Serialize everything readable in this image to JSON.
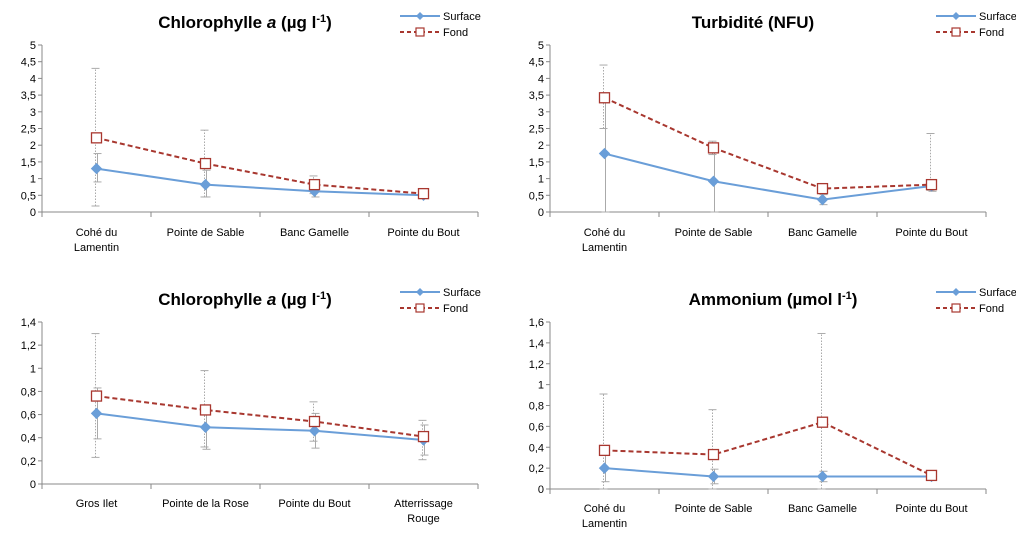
{
  "colors": {
    "surface": "#6a9ed8",
    "fond": "#a8372f",
    "axis": "#888888",
    "error": "#aaaaaa"
  },
  "chart_data": [
    {
      "type": "line",
      "title_main": "Chlorophylle ",
      "title_italic": "a",
      "title_rest": " (µg l",
      "title_sup": "-1",
      "title_end": ")",
      "categories": [
        [
          "Cohé du",
          "Lamentin"
        ],
        [
          "Pointe de Sable"
        ],
        [
          "Banc Gamelle"
        ],
        [
          "Pointe du Bout"
        ]
      ],
      "ylim": [
        0,
        5
      ],
      "yticks": [
        "0",
        "0,5",
        "1",
        "1,5",
        "2",
        "2,5",
        "3",
        "3,5",
        "4",
        "4,5",
        "5"
      ],
      "legend_placement": "top-right",
      "series": [
        {
          "name": "Surface",
          "values": [
            1.3,
            0.82,
            0.62,
            0.5
          ],
          "err_low": [
            0.9,
            0.45,
            0.45,
            0.42
          ],
          "err_high": [
            1.75,
            1.25,
            0.75,
            0.58
          ]
        },
        {
          "name": "Fond",
          "values": [
            2.22,
            1.45,
            0.82,
            0.55
          ],
          "err_low": [
            0.18,
            0.45,
            0.55,
            0.45
          ],
          "err_high": [
            4.3,
            2.45,
            1.08,
            0.65
          ]
        }
      ]
    },
    {
      "type": "line",
      "title_main": "Turbidité (NFU)",
      "title_italic": "",
      "title_rest": "",
      "title_sup": "",
      "title_end": "",
      "categories": [
        [
          "Cohé du",
          "Lamentin"
        ],
        [
          "Pointe de Sable"
        ],
        [
          "Banc Gamelle"
        ],
        [
          "Pointe du Bout"
        ]
      ],
      "ylim": [
        0,
        5
      ],
      "yticks": [
        "0",
        "0,5",
        "1",
        "1,5",
        "2",
        "2,5",
        "3",
        "3,5",
        "4",
        "4,5",
        "5"
      ],
      "legend_placement": "top-right",
      "series": [
        {
          "name": "Surface",
          "values": [
            1.75,
            0.92,
            0.37,
            0.78
          ],
          "err_low": [
            0,
            0,
            0.22,
            0.62
          ],
          "err_high": [
            3.5,
            1.85,
            0.52,
            0.95
          ]
        },
        {
          "name": "Fond",
          "values": [
            3.42,
            1.92,
            0.7,
            0.82
          ],
          "err_low": [
            2.5,
            1.72,
            0.62,
            0.65
          ],
          "err_high": [
            4.4,
            2.12,
            0.78,
            2.35
          ]
        }
      ]
    },
    {
      "type": "line",
      "title_main": "Chlorophylle ",
      "title_italic": "a",
      "title_rest": " (µg l",
      "title_sup": "-1",
      "title_end": ")",
      "categories": [
        [
          "Gros Ilet"
        ],
        [
          "Pointe de la Rose"
        ],
        [
          "Pointe du Bout"
        ],
        [
          "Atterrissage",
          "Rouge"
        ]
      ],
      "ylim": [
        0,
        1.4
      ],
      "yticks": [
        "0",
        "0,2",
        "0,4",
        "0,6",
        "0,8",
        "1",
        "1,2",
        "1,4"
      ],
      "legend_placement": "top-right",
      "series": [
        {
          "name": "Surface",
          "values": [
            0.61,
            0.49,
            0.46,
            0.38
          ],
          "err_low": [
            0.39,
            0.3,
            0.31,
            0.25
          ],
          "err_high": [
            0.83,
            0.68,
            0.61,
            0.51
          ]
        },
        {
          "name": "Fond",
          "values": [
            0.76,
            0.64,
            0.54,
            0.41
          ],
          "err_low": [
            0.23,
            0.32,
            0.37,
            0.21
          ],
          "err_high": [
            1.3,
            0.98,
            0.71,
            0.55
          ]
        }
      ]
    },
    {
      "type": "line",
      "title_main": "Ammonium (µmol l",
      "title_italic": "",
      "title_rest": "",
      "title_sup": "-1",
      "title_end": ")",
      "categories": [
        [
          "Cohé du",
          "Lamentin"
        ],
        [
          "Pointe de Sable"
        ],
        [
          "Banc Gamelle"
        ],
        [
          "Pointe du Bout"
        ]
      ],
      "ylim": [
        0,
        1.6
      ],
      "yticks": [
        "0",
        "0,2",
        "0,4",
        "0,6",
        "0,8",
        "1",
        "1,2",
        "1,4",
        "1,6"
      ],
      "legend_placement": "top-right",
      "series": [
        {
          "name": "Surface",
          "values": [
            0.2,
            0.12,
            0.12,
            0.12
          ],
          "err_low": [
            0.07,
            0.05,
            0.07,
            0.1
          ],
          "err_high": [
            0.33,
            0.19,
            0.17,
            0.14
          ]
        },
        {
          "name": "Fond",
          "values": [
            0.37,
            0.33,
            0.64,
            0.13
          ],
          "err_low": [
            0,
            0,
            0,
            0.1
          ],
          "err_high": [
            0.91,
            0.76,
            1.49,
            0.16
          ]
        }
      ]
    }
  ]
}
